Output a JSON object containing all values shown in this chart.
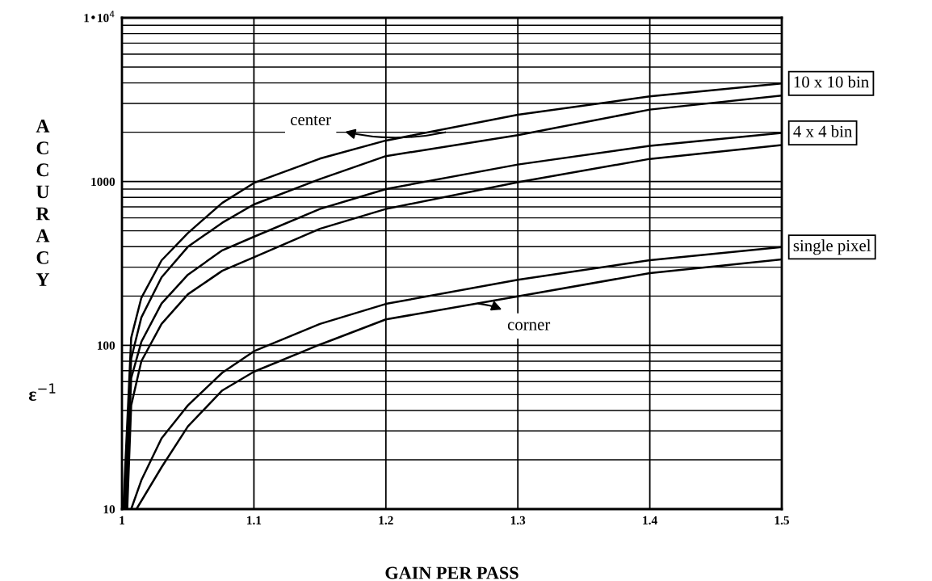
{
  "chart_data": {
    "type": "line",
    "xlabel": "GAIN PER PASS",
    "ylabel": "ACCURACY ε$^{−1}$",
    "log": "y",
    "grid": true,
    "marker": "none",
    "line_style": "solid",
    "xlim": [
      1,
      1.5
    ],
    "xticks": [
      1,
      1.1,
      1.2,
      1.3,
      1.4,
      1.5
    ],
    "ylim": [
      10,
      10000
    ],
    "yticks": [
      10,
      100,
      1000,
      {
        "value": 10000,
        "label": "1•10$^{4}$"
      }
    ],
    "series": [
      {
        "name": "10 x 10 bin",
        "color": "#000000",
        "x": [
          1.001,
          1.007,
          1.0147,
          1.03,
          1.05,
          1.076,
          1.1,
          1.15,
          1.2,
          1.3,
          1.4,
          1.5
        ],
        "values": [
          10,
          111,
          195,
          330,
          485,
          740,
          980,
          1380,
          1780,
          2560,
          3310,
          3970
        ]
      },
      {
        "color": "#000000",
        "x": [
          1.002,
          1.007,
          1.0147,
          1.03,
          1.05,
          1.076,
          1.1,
          1.15,
          1.2,
          1.3,
          1.4,
          1.5
        ],
        "values": [
          10,
          83,
          148,
          260,
          400,
          560,
          725,
          1035,
          1430,
          1920,
          2750,
          3350
        ]
      },
      {
        "name": "4 x 4 bin",
        "color": "#000000",
        "x": [
          1.003,
          1.007,
          1.0147,
          1.03,
          1.05,
          1.076,
          1.1,
          1.15,
          1.2,
          1.3,
          1.4,
          1.5
        ],
        "values": [
          10,
          63,
          105,
          180,
          270,
          380,
          460,
          680,
          900,
          1270,
          1650,
          1980
        ]
      },
      {
        "color": "#000000",
        "x": [
          1.004,
          1.007,
          1.0147,
          1.03,
          1.05,
          1.076,
          1.1,
          1.15,
          1.2,
          1.3,
          1.4,
          1.5
        ],
        "values": [
          10,
          43,
          80,
          135,
          205,
          285,
          345,
          515,
          680,
          990,
          1375,
          1670
        ]
      },
      {
        "name": "single pixel",
        "color": "#000000",
        "x": [
          1.007,
          1.0147,
          1.03,
          1.05,
          1.076,
          1.1,
          1.15,
          1.2,
          1.3,
          1.4,
          1.5
        ],
        "values": [
          10,
          15,
          27,
          43,
          68,
          92,
          135,
          179,
          251,
          331,
          398
        ]
      },
      {
        "color": "#000000",
        "x": [
          1.011,
          1.03,
          1.05,
          1.076,
          1.1,
          1.15,
          1.2,
          1.3,
          1.4,
          1.5
        ],
        "values": [
          10,
          18,
          32,
          53,
          69,
          101,
          144,
          199,
          276,
          335
        ]
      }
    ],
    "annotations": [
      {
        "text": "center",
        "x": 1.245,
        "y": 2000
      },
      {
        "text": "corner",
        "x": 1.27,
        "y": 180
      }
    ]
  }
}
